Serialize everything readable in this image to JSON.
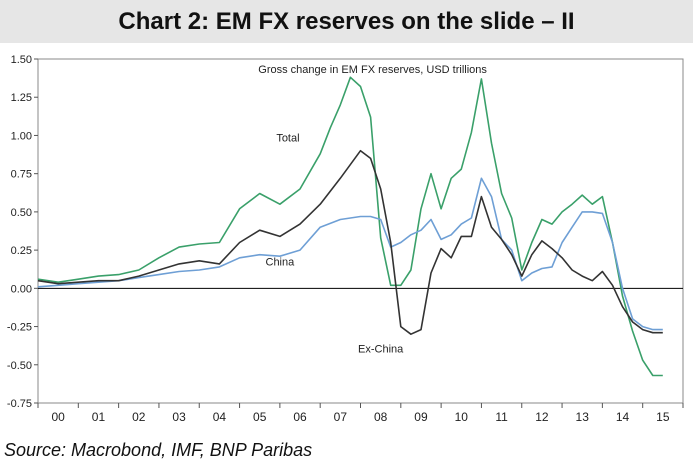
{
  "title": "Chart 2: EM FX reserves on the slide – II",
  "source": "Source: Macrobond, IMF, BNP Paribas",
  "chart_data": {
    "type": "line",
    "subtitle": "Gross change in EM FX reserves, USD trillions",
    "ylim": [
      -0.75,
      1.5
    ],
    "yticks": [
      "1.50",
      "1.25",
      "1.00",
      "0.75",
      "0.50",
      "0.25",
      "0.00",
      "-0.25",
      "-0.50",
      "-0.75"
    ],
    "ytick_values": [
      1.5,
      1.25,
      1.0,
      0.75,
      0.5,
      0.25,
      0.0,
      -0.25,
      -0.5,
      -0.75
    ],
    "xlim": [
      2000,
      2016
    ],
    "xticks": [
      "00",
      "01",
      "02",
      "03",
      "04",
      "05",
      "06",
      "07",
      "08",
      "09",
      "10",
      "11",
      "12",
      "13",
      "14",
      "15"
    ],
    "grid": false,
    "series": [
      {
        "name": "Total",
        "color": "#3aa06a",
        "x": [
          2000.0,
          2000.5,
          2001.0,
          2001.5,
          2002.0,
          2002.5,
          2003.0,
          2003.5,
          2004.0,
          2004.5,
          2005.0,
          2005.5,
          2006.0,
          2006.5,
          2007.0,
          2007.25,
          2007.5,
          2007.75,
          2008.0,
          2008.25,
          2008.5,
          2008.75,
          2009.0,
          2009.25,
          2009.5,
          2009.75,
          2010.0,
          2010.25,
          2010.5,
          2010.75,
          2011.0,
          2011.25,
          2011.5,
          2011.75,
          2012.0,
          2012.25,
          2012.5,
          2012.75,
          2013.0,
          2013.25,
          2013.5,
          2013.75,
          2014.0,
          2014.25,
          2014.5,
          2014.75,
          2015.0,
          2015.25,
          2015.5
        ],
        "values": [
          0.06,
          0.04,
          0.06,
          0.08,
          0.09,
          0.12,
          0.2,
          0.27,
          0.29,
          0.3,
          0.52,
          0.62,
          0.55,
          0.65,
          0.88,
          1.05,
          1.2,
          1.38,
          1.32,
          1.12,
          0.33,
          0.02,
          0.02,
          0.12,
          0.52,
          0.75,
          0.52,
          0.72,
          0.78,
          1.02,
          1.37,
          0.95,
          0.62,
          0.46,
          0.12,
          0.3,
          0.45,
          0.42,
          0.5,
          0.55,
          0.61,
          0.55,
          0.6,
          0.3,
          -0.05,
          -0.28,
          -0.47,
          -0.57,
          -0.57
        ]
      },
      {
        "name": "China",
        "color": "#6e9fd5",
        "x": [
          2000.0,
          2000.5,
          2001.0,
          2001.5,
          2002.0,
          2002.5,
          2003.0,
          2003.5,
          2004.0,
          2004.5,
          2005.0,
          2005.5,
          2006.0,
          2006.5,
          2007.0,
          2007.5,
          2008.0,
          2008.25,
          2008.5,
          2008.75,
          2009.0,
          2009.25,
          2009.5,
          2009.75,
          2010.0,
          2010.25,
          2010.5,
          2010.75,
          2011.0,
          2011.25,
          2011.5,
          2011.75,
          2012.0,
          2012.25,
          2012.5,
          2012.75,
          2013.0,
          2013.25,
          2013.5,
          2013.75,
          2014.0,
          2014.25,
          2014.5,
          2014.75,
          2015.0,
          2015.25,
          2015.5
        ],
        "values": [
          0.01,
          0.02,
          0.03,
          0.04,
          0.05,
          0.07,
          0.09,
          0.11,
          0.12,
          0.14,
          0.2,
          0.22,
          0.21,
          0.25,
          0.4,
          0.45,
          0.47,
          0.47,
          0.45,
          0.27,
          0.3,
          0.35,
          0.38,
          0.45,
          0.32,
          0.35,
          0.42,
          0.46,
          0.72,
          0.6,
          0.32,
          0.25,
          0.05,
          0.1,
          0.13,
          0.14,
          0.3,
          0.4,
          0.5,
          0.5,
          0.49,
          0.3,
          0.0,
          -0.2,
          -0.25,
          -0.27,
          -0.27
        ]
      },
      {
        "name": "Ex-China",
        "color": "#333333",
        "x": [
          2000.0,
          2000.5,
          2001.0,
          2001.5,
          2002.0,
          2002.5,
          2003.0,
          2003.5,
          2004.0,
          2004.5,
          2005.0,
          2005.5,
          2006.0,
          2006.5,
          2007.0,
          2007.5,
          2008.0,
          2008.25,
          2008.5,
          2008.75,
          2009.0,
          2009.25,
          2009.5,
          2009.75,
          2010.0,
          2010.25,
          2010.5,
          2010.75,
          2011.0,
          2011.25,
          2011.5,
          2011.75,
          2012.0,
          2012.25,
          2012.5,
          2012.75,
          2013.0,
          2013.25,
          2013.5,
          2013.75,
          2014.0,
          2014.25,
          2014.5,
          2014.75,
          2015.0,
          2015.25,
          2015.5
        ],
        "values": [
          0.05,
          0.03,
          0.04,
          0.05,
          0.05,
          0.08,
          0.12,
          0.16,
          0.18,
          0.16,
          0.3,
          0.38,
          0.34,
          0.42,
          0.55,
          0.72,
          0.9,
          0.85,
          0.65,
          0.3,
          -0.25,
          -0.3,
          -0.27,
          0.1,
          0.26,
          0.2,
          0.34,
          0.34,
          0.6,
          0.4,
          0.32,
          0.22,
          0.08,
          0.22,
          0.31,
          0.26,
          0.2,
          0.12,
          0.08,
          0.05,
          0.11,
          0.02,
          -0.12,
          -0.22,
          -0.27,
          -0.29,
          -0.29
        ]
      }
    ],
    "annotations": [
      {
        "text": "Total",
        "x": 2006.2,
        "y": 0.96
      },
      {
        "text": "China",
        "x": 2006.0,
        "y": 0.15
      },
      {
        "text": "Ex-China",
        "x": 2008.5,
        "y": -0.42
      }
    ]
  }
}
